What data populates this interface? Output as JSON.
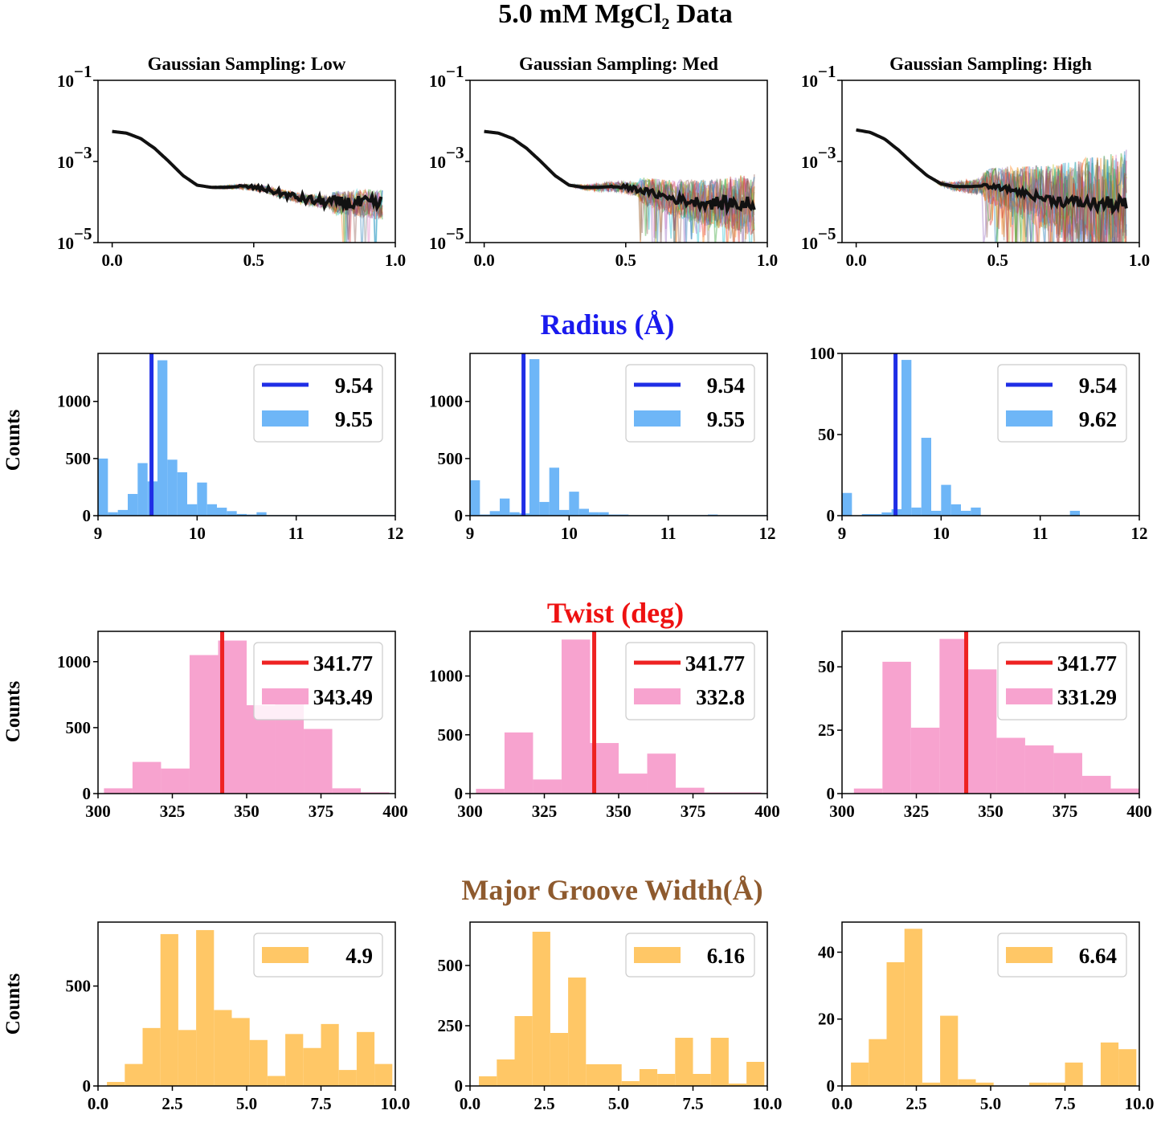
{
  "figure": {
    "title": "5.0 mM MgCl₂ Data",
    "sections": [
      {
        "key": "saxs",
        "title": "",
        "color": "#000000"
      },
      {
        "key": "radius",
        "title": "Radius (Å)",
        "color": "#1a1aee"
      },
      {
        "key": "twist",
        "title": "Twist (deg)",
        "color": "#ee1111"
      },
      {
        "key": "groove",
        "title": "Major Groove Width(Å)",
        "color": "#8e5a2e"
      }
    ],
    "row_ylabel": "Counts",
    "colors": {
      "radius_bar": "#6eb6f7",
      "radius_line": "#1f2ee6",
      "twist_bar": "#f7a3cf",
      "twist_line": "#ee2222",
      "groove_bar": "#ffc766",
      "curve": "#111111"
    }
  },
  "chart_data": [
    {
      "type": "line",
      "row": "saxs",
      "title": "Gaussian Sampling: Low",
      "yscale": "log",
      "xlim": [
        -0.05,
        1.0
      ],
      "ylim": [
        1e-05,
        0.1
      ],
      "xticks": [
        0.0,
        0.5,
        1.0
      ],
      "xtick_labels": [
        "0.0",
        "0.5",
        "1.0"
      ],
      "yticks": [
        0.1,
        0.001,
        1e-05
      ],
      "ytick_labels": [
        [
          "10",
          "−1"
        ],
        [
          "10",
          "−3"
        ],
        [
          "10",
          "−5"
        ]
      ],
      "noise": 0.6,
      "drop_start": 0.78,
      "series": [
        {
          "name": "mean",
          "x": [
            0.0,
            0.05,
            0.1,
            0.15,
            0.2,
            0.25,
            0.3,
            0.35,
            0.4,
            0.45,
            0.5,
            0.55,
            0.6,
            0.65,
            0.7,
            0.75,
            0.8,
            0.85,
            0.9,
            0.95
          ],
          "y": [
            0.0055,
            0.005,
            0.0037,
            0.0021,
            0.001,
            0.00045,
            0.00026,
            0.00023,
            0.00023,
            0.00024,
            0.00023,
            0.0002,
            0.00016,
            0.00013,
            0.00011,
            0.0001,
            9.5e-05,
            9.2e-05,
            9e-05,
            8.5e-05
          ]
        }
      ]
    },
    {
      "type": "line",
      "row": "saxs",
      "title": "Gaussian Sampling: Med",
      "yscale": "log",
      "xlim": [
        -0.05,
        1.0
      ],
      "ylim": [
        1e-05,
        0.1
      ],
      "xticks": [
        0.0,
        0.5,
        1.0
      ],
      "xtick_labels": [
        "0.0",
        "0.5",
        "1.0"
      ],
      "yticks": [
        0.1,
        0.001,
        1e-05
      ],
      "ytick_labels": [
        [
          "10",
          "−1"
        ],
        [
          "10",
          "−3"
        ],
        [
          "10",
          "−5"
        ]
      ],
      "noise": 1.2,
      "drop_start": 0.55,
      "series": [
        {
          "name": "mean",
          "x": [
            0.0,
            0.05,
            0.1,
            0.15,
            0.2,
            0.25,
            0.3,
            0.35,
            0.4,
            0.45,
            0.5,
            0.55,
            0.6,
            0.65,
            0.7,
            0.75,
            0.8,
            0.85,
            0.9,
            0.95
          ],
          "y": [
            0.0055,
            0.005,
            0.0037,
            0.0021,
            0.001,
            0.00045,
            0.00026,
            0.00023,
            0.00023,
            0.00024,
            0.00023,
            0.0002,
            0.00016,
            0.00013,
            0.00011,
            0.0001,
            9.5e-05,
            9.2e-05,
            9e-05,
            8.5e-05
          ]
        }
      ]
    },
    {
      "type": "line",
      "row": "saxs",
      "title": "Gaussian Sampling: High",
      "yscale": "log",
      "xlim": [
        -0.05,
        1.0
      ],
      "ylim": [
        1e-05,
        0.1
      ],
      "xticks": [
        0.0,
        0.5,
        1.0
      ],
      "xtick_labels": [
        "0.0",
        "0.5",
        "1.0"
      ],
      "yticks": [
        0.1,
        0.001,
        1e-05
      ],
      "ytick_labels": [
        [
          "10",
          "−1"
        ],
        [
          "10",
          "−3"
        ],
        [
          "10",
          "−5"
        ]
      ],
      "noise": 2.2,
      "drop_start": 0.45,
      "series": [
        {
          "name": "mean",
          "x": [
            0.0,
            0.05,
            0.1,
            0.15,
            0.2,
            0.25,
            0.3,
            0.35,
            0.4,
            0.45,
            0.5,
            0.55,
            0.6,
            0.65,
            0.7,
            0.75,
            0.8,
            0.85,
            0.9,
            0.95
          ],
          "y": [
            0.006,
            0.0052,
            0.0036,
            0.0019,
            0.0009,
            0.00045,
            0.00028,
            0.00024,
            0.00024,
            0.00025,
            0.00023,
            0.0002,
            0.00016,
            0.00013,
            0.00011,
            0.0001,
            9.5e-05,
            9e-05,
            8.8e-05,
            8.5e-05
          ]
        }
      ]
    },
    {
      "type": "bar",
      "row": "radius",
      "xlim": [
        9,
        12
      ],
      "ylim": [
        0,
        1420
      ],
      "xticks": [
        9,
        10,
        11,
        12
      ],
      "yticks": [
        0,
        500,
        1000
      ],
      "bin_width": 0.1,
      "bins": [
        9.0,
        9.1,
        9.2,
        9.3,
        9.4,
        9.5,
        9.6,
        9.7,
        9.8,
        9.9,
        10.0,
        10.1,
        10.2,
        10.3,
        10.4,
        10.5,
        10.6,
        10.7,
        10.8,
        10.9,
        11.0,
        11.1,
        11.2,
        11.3,
        11.4,
        11.5,
        11.6,
        11.7,
        11.8,
        11.9
      ],
      "counts": [
        500,
        30,
        50,
        190,
        460,
        300,
        1360,
        490,
        380,
        100,
        290,
        100,
        70,
        40,
        15,
        10,
        30,
        5,
        5,
        5,
        5,
        5,
        5,
        5,
        5,
        5,
        5,
        5,
        5,
        5
      ],
      "vline": 9.54,
      "legend": [
        "9.54",
        "9.55"
      ]
    },
    {
      "type": "bar",
      "row": "radius",
      "xlim": [
        9,
        12
      ],
      "ylim": [
        0,
        1420
      ],
      "xticks": [
        9,
        10,
        11,
        12
      ],
      "yticks": [
        0,
        500,
        1000
      ],
      "bin_width": 0.1,
      "bins": [
        9.0,
        9.1,
        9.2,
        9.3,
        9.4,
        9.5,
        9.6,
        9.7,
        9.8,
        9.9,
        10.0,
        10.1,
        10.2,
        10.3,
        10.4,
        10.5,
        10.6,
        10.7,
        10.8,
        10.9,
        11.0,
        11.1,
        11.2,
        11.3,
        11.4,
        11.5,
        11.6,
        11.7,
        11.8,
        11.9
      ],
      "counts": [
        310,
        10,
        40,
        150,
        30,
        20,
        1370,
        120,
        420,
        50,
        210,
        60,
        30,
        30,
        10,
        10,
        5,
        5,
        5,
        5,
        5,
        5,
        5,
        5,
        10,
        5,
        5,
        5,
        5,
        5
      ],
      "vline": 9.54,
      "legend": [
        "9.54",
        "9.55"
      ]
    },
    {
      "type": "bar",
      "row": "radius",
      "xlim": [
        9,
        12
      ],
      "ylim": [
        0,
        100
      ],
      "xticks": [
        9,
        10,
        11,
        12
      ],
      "yticks": [
        0,
        50,
        100
      ],
      "bin_width": 0.1,
      "bins": [
        9.0,
        9.1,
        9.2,
        9.3,
        9.4,
        9.5,
        9.6,
        9.7,
        9.8,
        9.9,
        10.0,
        10.1,
        10.2,
        10.3,
        10.4,
        10.5,
        10.6,
        10.7,
        10.8,
        10.9,
        11.0,
        11.1,
        11.2,
        11.3,
        11.4,
        11.5,
        11.6,
        11.7,
        11.8,
        11.9
      ],
      "counts": [
        14,
        0,
        1,
        1,
        2,
        4,
        96,
        5,
        48,
        3,
        19,
        7,
        3,
        5,
        0,
        0,
        0,
        0,
        0,
        0,
        0,
        0,
        0,
        3,
        0,
        0,
        0,
        0,
        0,
        0
      ],
      "vline": 9.54,
      "legend": [
        "9.54",
        "9.62"
      ]
    },
    {
      "type": "bar",
      "row": "twist",
      "xlim": [
        300,
        400
      ],
      "ylim": [
        0,
        1230
      ],
      "xticks": [
        300,
        325,
        350,
        375,
        400
      ],
      "yticks": [
        0,
        500,
        1000
      ],
      "bin_width": 9.6,
      "bins": [
        302,
        311.6,
        321.2,
        330.8,
        340.4,
        350,
        359.6,
        369.2,
        378.8,
        388.4
      ],
      "counts": [
        40,
        240,
        190,
        1050,
        1160,
        670,
        700,
        490,
        40,
        10
      ],
      "vline": 341.77,
      "legend": [
        "341.77",
        "343.49"
      ]
    },
    {
      "type": "bar",
      "row": "twist",
      "xlim": [
        300,
        400
      ],
      "ylim": [
        0,
        1380
      ],
      "xticks": [
        300,
        325,
        350,
        375,
        400
      ],
      "yticks": [
        0,
        500,
        1000
      ],
      "bin_width": 9.6,
      "bins": [
        302,
        311.6,
        321.2,
        330.8,
        340.4,
        350,
        359.6,
        369.2,
        378.8,
        388.4
      ],
      "counts": [
        40,
        520,
        120,
        1310,
        430,
        170,
        340,
        50,
        10,
        10
      ],
      "vline": 341.77,
      "legend": [
        "341.77",
        "332.8"
      ]
    },
    {
      "type": "bar",
      "row": "twist",
      "xlim": [
        300,
        400
      ],
      "ylim": [
        0,
        64
      ],
      "xticks": [
        300,
        325,
        350,
        375,
        400
      ],
      "yticks": [
        0,
        25,
        50
      ],
      "bin_width": 9.6,
      "bins": [
        304,
        313.6,
        323.2,
        332.8,
        342.4,
        352,
        361.6,
        371.2,
        380.8,
        390.4
      ],
      "counts": [
        2,
        52,
        26,
        61,
        49,
        22,
        19,
        16,
        7,
        2
      ],
      "vline": 341.77,
      "legend": [
        "341.77",
        "331.29"
      ]
    },
    {
      "type": "bar",
      "row": "groove",
      "xlim": [
        0,
        10
      ],
      "ylim": [
        0,
        820
      ],
      "xticks": [
        0,
        2.5,
        5,
        7.5,
        10
      ],
      "xtick_labels": [
        "0.0",
        "2.5",
        "5.0",
        "7.5",
        "10.0"
      ],
      "yticks": [
        0,
        500
      ],
      "bin_width": 0.6,
      "bins": [
        0.3,
        0.9,
        1.5,
        2.1,
        2.7,
        3.3,
        3.9,
        4.5,
        5.1,
        5.7,
        6.3,
        6.9,
        7.5,
        8.1,
        8.7,
        9.3
      ],
      "counts": [
        20,
        110,
        290,
        760,
        280,
        780,
        380,
        340,
        230,
        50,
        260,
        190,
        310,
        80,
        270,
        110
      ],
      "vline": null,
      "legend": [
        "4.9"
      ]
    },
    {
      "type": "bar",
      "row": "groove",
      "xlim": [
        0,
        10
      ],
      "ylim": [
        0,
        680
      ],
      "xticks": [
        0,
        2.5,
        5,
        7.5,
        10
      ],
      "xtick_labels": [
        "0.0",
        "2.5",
        "5.0",
        "7.5",
        "10.0"
      ],
      "yticks": [
        0,
        250,
        500
      ],
      "bin_width": 0.6,
      "bins": [
        0.3,
        0.9,
        1.5,
        2.1,
        2.7,
        3.3,
        3.9,
        4.5,
        5.1,
        5.7,
        6.3,
        6.9,
        7.5,
        8.1,
        8.7,
        9.3
      ],
      "counts": [
        40,
        110,
        290,
        640,
        220,
        450,
        90,
        90,
        20,
        70,
        50,
        200,
        50,
        200,
        10,
        100
      ],
      "vline": null,
      "legend": [
        "6.16"
      ]
    },
    {
      "type": "bar",
      "row": "groove",
      "xlim": [
        0,
        10
      ],
      "ylim": [
        0,
        49
      ],
      "xticks": [
        0,
        2.5,
        5,
        7.5,
        10
      ],
      "xtick_labels": [
        "0.0",
        "2.5",
        "5.0",
        "7.5",
        "10.0"
      ],
      "yticks": [
        0,
        20,
        40
      ],
      "bin_width": 0.6,
      "bins": [
        0.3,
        0.9,
        1.5,
        2.1,
        2.7,
        3.3,
        3.9,
        4.5,
        5.1,
        5.7,
        6.3,
        6.9,
        7.5,
        8.1,
        8.7,
        9.3
      ],
      "counts": [
        7,
        14,
        37,
        47,
        1,
        21,
        2,
        1,
        0,
        0,
        1,
        1,
        7,
        0,
        13,
        11
      ],
      "vline": null,
      "legend": [
        "6.64"
      ]
    }
  ]
}
